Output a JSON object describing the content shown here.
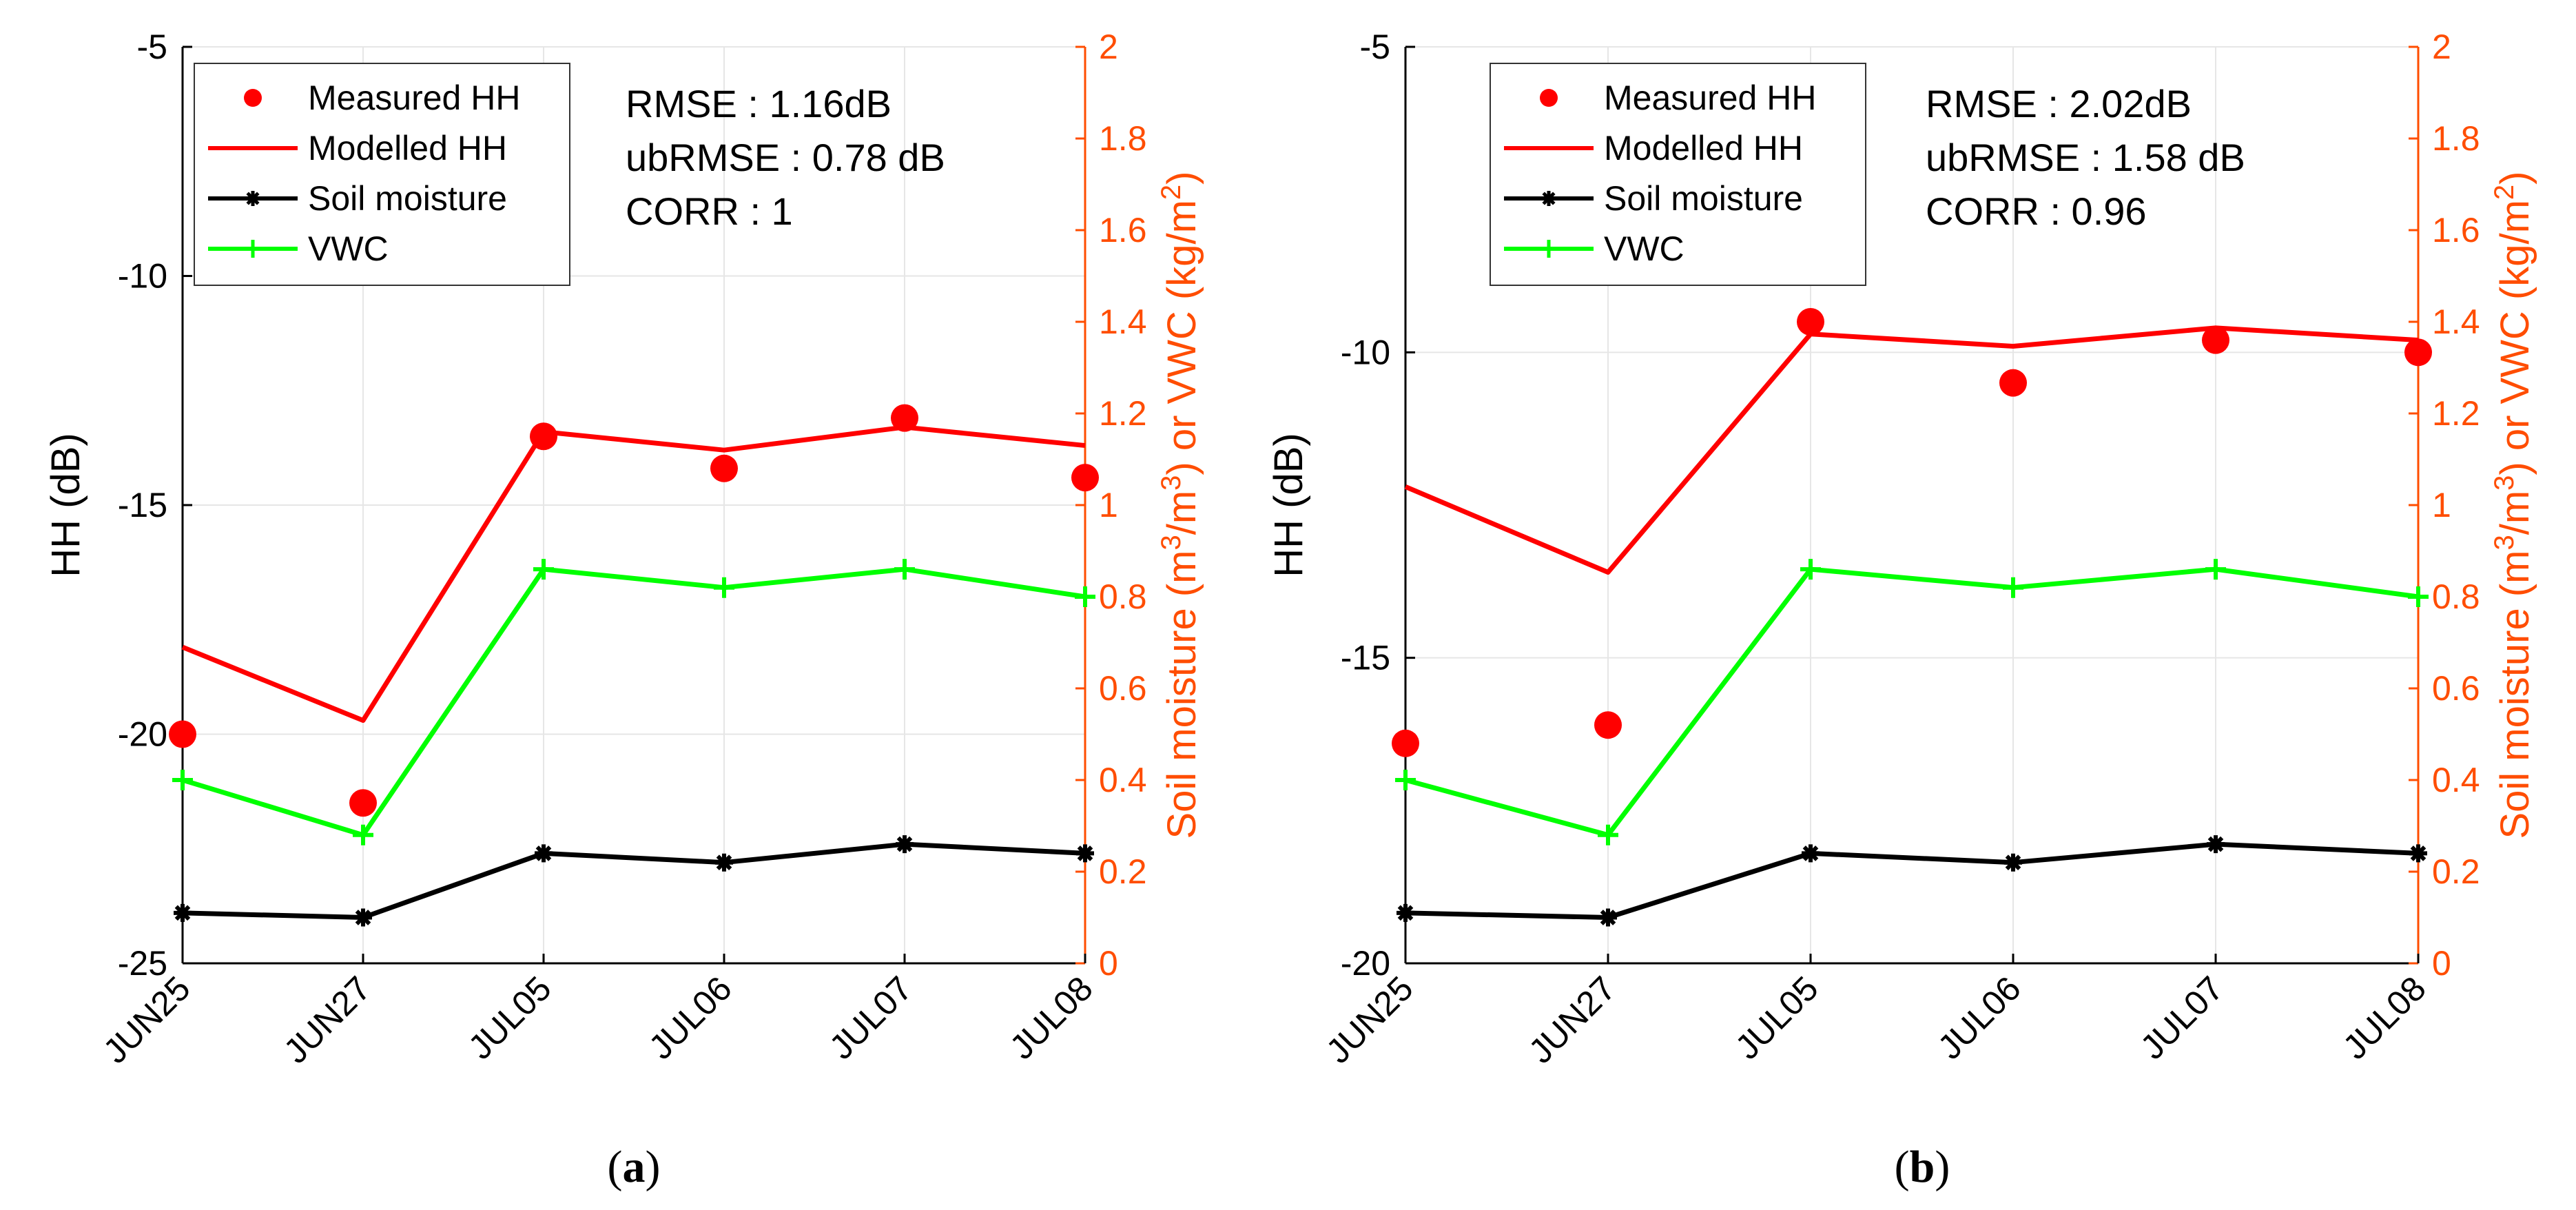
{
  "colors": {
    "measured": "#ff0000",
    "modelled": "#ff0000",
    "soil": "#000000",
    "vwc": "#00ff00",
    "right_axis": "#ff4d00",
    "grid": "#e6e6e6"
  },
  "chart_data": [
    {
      "type": "line",
      "panel": "a",
      "caption": "(a)",
      "categories": [
        "JUN25",
        "JUN27",
        "JUL05",
        "JUL06",
        "JUL07",
        "JUL08"
      ],
      "ylabel": "HH (dB)",
      "ylim": [
        -25,
        -5
      ],
      "yticks": [
        -25,
        -20,
        -15,
        -10,
        -5
      ],
      "ytick_labels": [
        "-25",
        "-20",
        "-15",
        "-10",
        "-5"
      ],
      "y2label_parts": [
        "Soil moisture (m",
        "3",
        "/m",
        "3",
        ") or VWC (kg/m",
        "2",
        ")"
      ],
      "y2lim": [
        0,
        2
      ],
      "y2ticks": [
        0,
        0.2,
        0.4,
        0.6,
        0.8,
        1,
        1.2,
        1.4,
        1.6,
        1.8,
        2
      ],
      "y2tick_labels": [
        "0",
        "0.2",
        "0.4",
        "0.6",
        "0.8",
        "1",
        "1.2",
        "1.4",
        "1.6",
        "1.8",
        "2"
      ],
      "grid": true,
      "legend_position": "top-left",
      "legend": [
        "Measured HH",
        "Modelled HH",
        "Soil moisture",
        "VWC"
      ],
      "stats": [
        "RMSE : 1.16dB",
        "ubRMSE : 0.78 dB",
        "CORR : 1"
      ],
      "series": [
        {
          "name": "Measured HH",
          "axis": "left",
          "style": "marker",
          "values": [
            -20.0,
            -21.5,
            -13.5,
            -14.2,
            -13.1,
            -14.4
          ]
        },
        {
          "name": "Modelled HH",
          "axis": "left",
          "style": "line",
          "values": [
            -18.1,
            -19.7,
            -13.4,
            -13.8,
            -13.3,
            -13.7
          ]
        },
        {
          "name": "Soil moisture",
          "axis": "right",
          "style": "line-star",
          "values": [
            0.11,
            0.1,
            0.24,
            0.22,
            0.26,
            0.24
          ]
        },
        {
          "name": "VWC",
          "axis": "right",
          "style": "line-plus",
          "values": [
            0.4,
            0.28,
            0.86,
            0.82,
            0.86,
            0.8
          ]
        }
      ]
    },
    {
      "type": "line",
      "panel": "b",
      "caption": "(b)",
      "categories": [
        "JUN25",
        "JUN27",
        "JUL05",
        "JUL06",
        "JUL07",
        "JUL08"
      ],
      "ylabel": "HH (dB)",
      "ylim": [
        -20,
        -5
      ],
      "yticks": [
        -20,
        -15,
        -10,
        -5
      ],
      "ytick_labels": [
        "-20",
        "-15",
        "-10",
        "-5"
      ],
      "y2label_parts": [
        "Soil moisture (m",
        "3",
        "/m",
        "3",
        ") or VWC (kg/m",
        "2",
        ")"
      ],
      "y2lim": [
        0,
        2
      ],
      "y2ticks": [
        0,
        0.2,
        0.4,
        0.6,
        0.8,
        1,
        1.2,
        1.4,
        1.6,
        1.8,
        2
      ],
      "y2tick_labels": [
        "0",
        "0.2",
        "0.4",
        "0.6",
        "0.8",
        "1",
        "1.2",
        "1.4",
        "1.6",
        "1.8",
        "2"
      ],
      "grid": true,
      "legend_position": "top-left",
      "legend": [
        "Measured HH",
        "Modelled HH",
        "Soil moisture",
        "VWC"
      ],
      "stats": [
        "RMSE : 2.02dB",
        "ubRMSE : 1.58 dB",
        "CORR : 0.96"
      ],
      "series": [
        {
          "name": "Measured HH",
          "axis": "left",
          "style": "marker",
          "values": [
            -16.4,
            -16.1,
            -9.5,
            -10.5,
            -9.8,
            -10.0
          ]
        },
        {
          "name": "Modelled HH",
          "axis": "left",
          "style": "line",
          "values": [
            -12.2,
            -13.6,
            -9.7,
            -9.9,
            -9.6,
            -9.8
          ]
        },
        {
          "name": "Soil moisture",
          "axis": "right",
          "style": "line-star",
          "values": [
            0.11,
            0.1,
            0.24,
            0.22,
            0.26,
            0.24
          ]
        },
        {
          "name": "VWC",
          "axis": "right",
          "style": "line-plus",
          "values": [
            0.4,
            0.28,
            0.86,
            0.82,
            0.86,
            0.8
          ]
        }
      ]
    }
  ]
}
